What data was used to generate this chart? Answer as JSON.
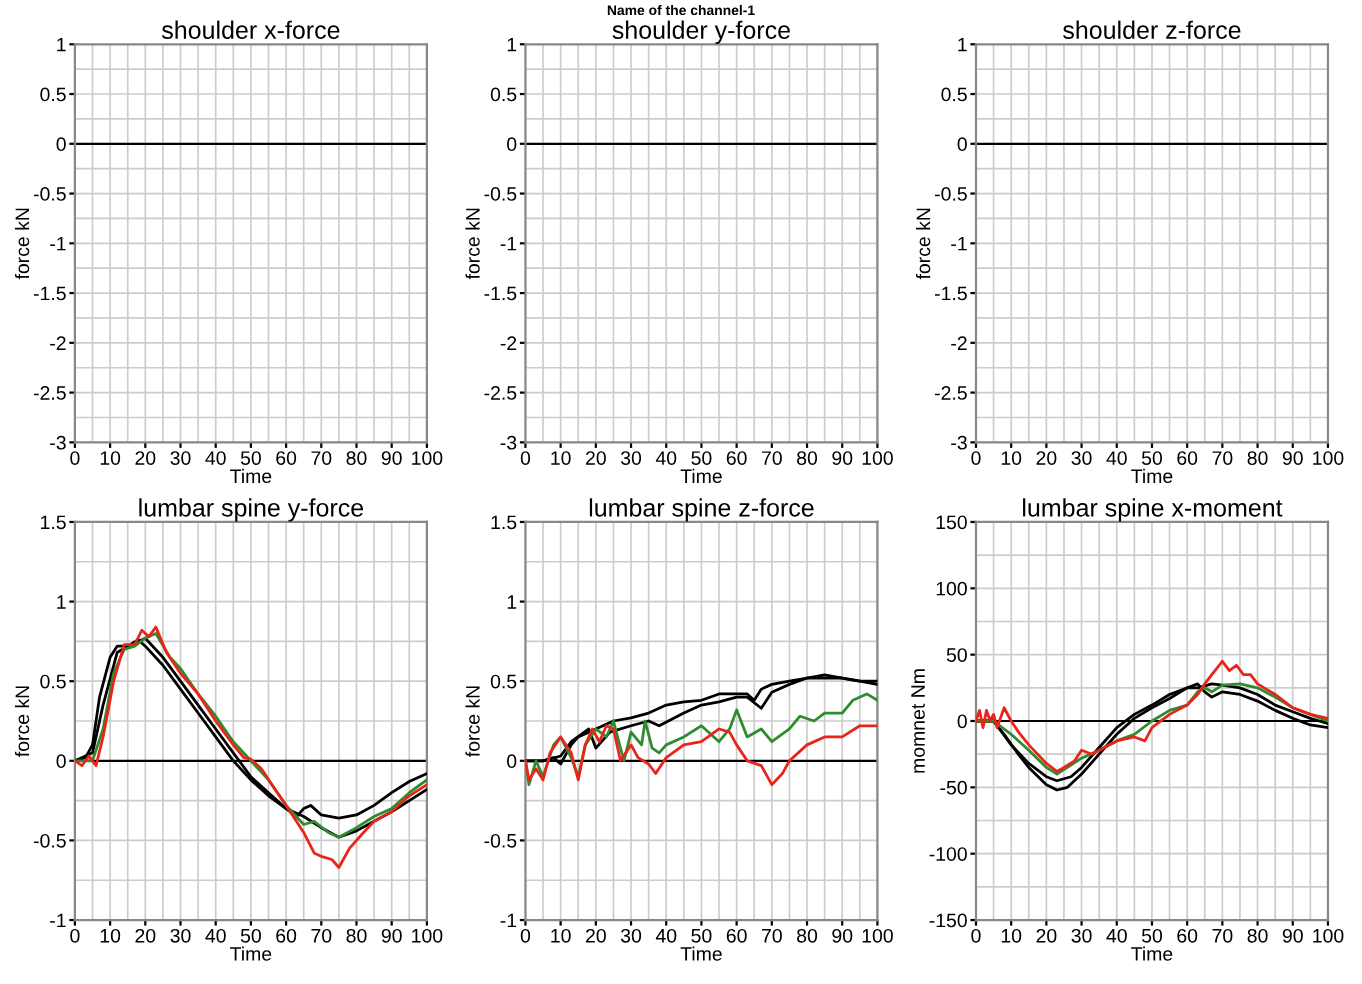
{
  "chart_data": [
    {
      "type": "line",
      "title": "shoulder x-force",
      "xlabel": "Time",
      "ylabel": "force kN",
      "annotations": [
        "Name of the channel-1"
      ],
      "xlim": [
        0,
        100
      ],
      "xticks": [
        0,
        10,
        20,
        30,
        40,
        50,
        60,
        70,
        80,
        90,
        100
      ],
      "ylim": [
        -3,
        1
      ],
      "yticks": [
        -3,
        -2.5,
        -2,
        -1.5,
        -1,
        -0.5,
        0,
        0.5,
        1
      ],
      "grid": true,
      "ref_lines": [
        {
          "axis": "y",
          "value": 0,
          "color": "#000000"
        }
      ]
    },
    {
      "type": "line",
      "title": "shoulder y-force",
      "xlabel": "Time",
      "ylabel": "force kN",
      "xlim": [
        0,
        100
      ],
      "xticks": [
        0,
        10,
        20,
        30,
        40,
        50,
        60,
        70,
        80,
        90,
        100
      ],
      "ylim": [
        -3,
        1
      ],
      "yticks": [
        -3,
        -2.5,
        -2,
        -1.5,
        -1,
        -0.5,
        0,
        0.5,
        1
      ],
      "grid": true,
      "ref_lines": [
        {
          "axis": "y",
          "value": 0,
          "color": "#000000"
        }
      ]
    },
    {
      "type": "line",
      "title": "shoulder z-force",
      "xlabel": "Time",
      "ylabel": "force kN",
      "xlim": [
        0,
        100
      ],
      "xticks": [
        0,
        10,
        20,
        30,
        40,
        50,
        60,
        70,
        80,
        90,
        100
      ],
      "ylim": [
        -3,
        1
      ],
      "yticks": [
        -3,
        -2.5,
        -2,
        -1.5,
        -1,
        -0.5,
        0,
        0.5,
        1
      ],
      "grid": true,
      "ref_lines": [
        {
          "axis": "y",
          "value": 0,
          "color": "#000000"
        }
      ]
    },
    {
      "type": "line",
      "title": "lumbar spine y-force",
      "xlabel": "Time",
      "ylabel": "force kN",
      "xlim": [
        0,
        100
      ],
      "xticks": [
        0,
        10,
        20,
        30,
        40,
        50,
        60,
        70,
        80,
        90,
        100
      ],
      "ylim": [
        -1,
        1.5
      ],
      "yticks": [
        -1,
        -0.5,
        0,
        0.5,
        1,
        1.5
      ],
      "grid": true,
      "ref_lines": [
        {
          "axis": "y",
          "value": 0,
          "color": "#000000"
        }
      ],
      "series": [
        {
          "color": "#000000",
          "x": [
            0,
            3,
            5,
            7,
            10,
            12,
            15,
            18,
            20,
            25,
            30,
            35,
            40,
            45,
            50,
            55,
            60,
            63,
            65,
            67,
            70,
            75,
            80,
            85,
            90,
            95,
            100
          ],
          "values": [
            0,
            0.02,
            0.1,
            0.4,
            0.65,
            0.72,
            0.72,
            0.76,
            0.72,
            0.6,
            0.45,
            0.3,
            0.15,
            0.0,
            -0.12,
            -0.22,
            -0.3,
            -0.35,
            -0.3,
            -0.28,
            -0.34,
            -0.36,
            -0.34,
            -0.28,
            -0.2,
            -0.13,
            -0.08
          ]
        },
        {
          "color": "#000000",
          "x": [
            0,
            5,
            8,
            12,
            15,
            20,
            25,
            30,
            35,
            40,
            45,
            50,
            55,
            60,
            65,
            70,
            75,
            80,
            85,
            90,
            95,
            100
          ],
          "values": [
            0,
            0.05,
            0.35,
            0.68,
            0.72,
            0.77,
            0.65,
            0.5,
            0.35,
            0.2,
            0.05,
            -0.1,
            -0.2,
            -0.3,
            -0.35,
            -0.42,
            -0.48,
            -0.44,
            -0.38,
            -0.32,
            -0.25,
            -0.18
          ]
        },
        {
          "color": "#2e8b2e",
          "x": [
            0,
            5,
            8,
            11,
            14,
            17,
            20,
            23,
            27,
            30,
            35,
            40,
            45,
            50,
            55,
            60,
            65,
            68,
            72,
            75,
            80,
            85,
            90,
            95,
            100
          ],
          "values": [
            0,
            0,
            0.2,
            0.55,
            0.7,
            0.72,
            0.77,
            0.8,
            0.65,
            0.58,
            0.42,
            0.28,
            0.12,
            0.0,
            -0.12,
            -0.28,
            -0.4,
            -0.38,
            -0.45,
            -0.48,
            -0.42,
            -0.35,
            -0.3,
            -0.2,
            -0.12
          ]
        },
        {
          "color": "#e8251a",
          "x": [
            0,
            2,
            4,
            6,
            8,
            11,
            14,
            17,
            19,
            21,
            23,
            26,
            30,
            35,
            40,
            45,
            48,
            50,
            53,
            56,
            60,
            65,
            68,
            70,
            73,
            75,
            78,
            82,
            85,
            90,
            95,
            100
          ],
          "values": [
            0,
            -0.03,
            0.03,
            -0.03,
            0.15,
            0.5,
            0.73,
            0.73,
            0.82,
            0.78,
            0.84,
            0.68,
            0.55,
            0.42,
            0.25,
            0.1,
            0.02,
            0.01,
            -0.05,
            -0.15,
            -0.28,
            -0.45,
            -0.58,
            -0.6,
            -0.62,
            -0.67,
            -0.55,
            -0.45,
            -0.38,
            -0.32,
            -0.22,
            -0.15
          ]
        }
      ]
    },
    {
      "type": "line",
      "title": "lumbar spine z-force",
      "xlabel": "Time",
      "ylabel": "force kN",
      "xlim": [
        0,
        100
      ],
      "xticks": [
        0,
        10,
        20,
        30,
        40,
        50,
        60,
        70,
        80,
        90,
        100
      ],
      "ylim": [
        -1,
        1.5
      ],
      "yticks": [
        -1,
        -0.5,
        0,
        0.5,
        1,
        1.5
      ],
      "grid": true,
      "ref_lines": [
        {
          "axis": "y",
          "value": 0,
          "color": "#000000"
        }
      ],
      "series": [
        {
          "color": "#000000",
          "x": [
            0,
            5,
            8,
            10,
            13,
            15,
            20,
            25,
            30,
            35,
            40,
            45,
            50,
            55,
            60,
            63,
            65,
            67,
            70,
            75,
            80,
            85,
            90,
            95,
            100
          ],
          "values": [
            0,
            0,
            0.02,
            -0.02,
            0.1,
            0.15,
            0.2,
            0.25,
            0.27,
            0.3,
            0.35,
            0.37,
            0.38,
            0.42,
            0.42,
            0.42,
            0.38,
            0.45,
            0.48,
            0.5,
            0.52,
            0.52,
            0.52,
            0.5,
            0.48
          ]
        },
        {
          "color": "#000000",
          "x": [
            0,
            5,
            10,
            13,
            18,
            20,
            24,
            30,
            35,
            38,
            45,
            50,
            55,
            60,
            63,
            67,
            70,
            75,
            80,
            85,
            90,
            95,
            100
          ],
          "values": [
            0,
            0,
            0.03,
            0.12,
            0.2,
            0.08,
            0.18,
            0.22,
            0.25,
            0.22,
            0.3,
            0.35,
            0.37,
            0.4,
            0.4,
            0.33,
            0.43,
            0.48,
            0.52,
            0.54,
            0.52,
            0.5,
            0.5
          ]
        },
        {
          "color": "#2e8b2e",
          "x": [
            0,
            1,
            3,
            5,
            8,
            10,
            13,
            15,
            17,
            20,
            23,
            25,
            27,
            28,
            30,
            33,
            34,
            36,
            38,
            40,
            45,
            50,
            55,
            58,
            60,
            63,
            67,
            70,
            75,
            78,
            82,
            85,
            90,
            93,
            97,
            100
          ],
          "values": [
            0,
            -0.15,
            0,
            -0.1,
            0.1,
            0.15,
            0.02,
            -0.1,
            0.1,
            0.2,
            0.15,
            0.25,
            0.08,
            0.0,
            0.18,
            0.1,
            0.25,
            0.08,
            0.05,
            0.1,
            0.15,
            0.22,
            0.12,
            0.2,
            0.32,
            0.15,
            0.2,
            0.12,
            0.2,
            0.28,
            0.25,
            0.3,
            0.3,
            0.38,
            0.42,
            0.38
          ]
        },
        {
          "color": "#e8251a",
          "x": [
            0,
            1,
            3,
            5,
            7,
            10,
            13,
            15,
            17,
            19,
            21,
            23,
            25,
            27,
            30,
            32,
            35,
            37,
            40,
            45,
            50,
            55,
            58,
            60,
            63,
            67,
            70,
            73,
            75,
            80,
            85,
            90,
            95,
            100
          ],
          "values": [
            0,
            -0.12,
            -0.05,
            -0.12,
            0.05,
            0.15,
            0.05,
            -0.12,
            0.1,
            0.2,
            0.12,
            0.22,
            0.2,
            0.0,
            0.1,
            0.02,
            -0.02,
            -0.08,
            0.02,
            0.1,
            0.12,
            0.2,
            0.18,
            0.1,
            0.0,
            -0.03,
            -0.15,
            -0.08,
            0.0,
            0.1,
            0.15,
            0.15,
            0.22,
            0.22
          ]
        }
      ]
    },
    {
      "type": "line",
      "title": "lumbar spine x-moment",
      "xlabel": "Time",
      "ylabel": "momnet Nm",
      "xlim": [
        0,
        100
      ],
      "xticks": [
        0,
        10,
        20,
        30,
        40,
        50,
        60,
        70,
        80,
        90,
        100
      ],
      "ylim": [
        -150,
        150
      ],
      "yticks": [
        -150,
        -100,
        -50,
        0,
        50,
        100,
        150
      ],
      "grid": true,
      "ref_lines": [
        {
          "axis": "y",
          "value": 0,
          "color": "#000000"
        }
      ],
      "series": [
        {
          "color": "#000000",
          "x": [
            0,
            5,
            8,
            12,
            15,
            20,
            23,
            26,
            30,
            35,
            40,
            45,
            50,
            55,
            60,
            63,
            65,
            67,
            70,
            75,
            80,
            85,
            90,
            95,
            100
          ],
          "values": [
            0,
            0,
            -10,
            -25,
            -35,
            -48,
            -52,
            -50,
            -40,
            -25,
            -10,
            2,
            10,
            17,
            25,
            28,
            22,
            18,
            22,
            20,
            15,
            8,
            2,
            -3,
            -5
          ]
        },
        {
          "color": "#000000",
          "x": [
            0,
            5,
            10,
            15,
            20,
            23,
            27,
            30,
            35,
            40,
            45,
            50,
            55,
            60,
            63,
            67,
            70,
            75,
            80,
            85,
            90,
            95,
            100
          ],
          "values": [
            0,
            0,
            -18,
            -32,
            -42,
            -45,
            -42,
            -35,
            -20,
            -5,
            5,
            12,
            20,
            25,
            25,
            28,
            27,
            25,
            20,
            12,
            7,
            2,
            -2
          ]
        },
        {
          "color": "#2e8b2e",
          "x": [
            0,
            5,
            10,
            15,
            20,
            23,
            26,
            30,
            35,
            40,
            45,
            50,
            55,
            60,
            63,
            65,
            67,
            70,
            75,
            80,
            85,
            90,
            95,
            100
          ],
          "values": [
            0,
            0,
            -10,
            -22,
            -35,
            -40,
            -35,
            -28,
            -22,
            -15,
            -10,
            0,
            8,
            12,
            22,
            25,
            22,
            27,
            28,
            25,
            18,
            10,
            5,
            0
          ]
        },
        {
          "color": "#e8251a",
          "x": [
            0,
            1,
            2,
            3,
            4,
            5,
            6,
            8,
            10,
            12,
            15,
            20,
            23,
            25,
            28,
            30,
            33,
            35,
            40,
            45,
            48,
            50,
            55,
            60,
            63,
            65,
            67,
            70,
            72,
            74,
            76,
            78,
            80,
            85,
            90,
            95,
            100
          ],
          "values": [
            0,
            8,
            -5,
            8,
            0,
            5,
            -5,
            10,
            0,
            -8,
            -18,
            -32,
            -38,
            -35,
            -30,
            -22,
            -25,
            -22,
            -15,
            -12,
            -15,
            -5,
            5,
            12,
            20,
            28,
            35,
            45,
            38,
            42,
            35,
            35,
            28,
            20,
            10,
            5,
            2
          ]
        }
      ]
    }
  ]
}
